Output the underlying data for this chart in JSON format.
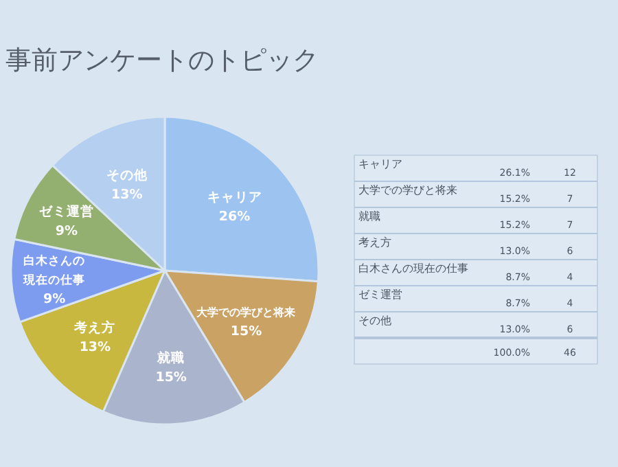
{
  "chart_data": {
    "type": "pie",
    "title": "事前アンケートのトピック",
    "categories": [
      "キャリア",
      "大学での学びと将来",
      "就職",
      "考え方",
      "白木さんの現在の仕事",
      "ゼミ運営",
      "その他"
    ],
    "values": [
      26.1,
      15.2,
      15.2,
      13.0,
      8.7,
      8.7,
      13.0
    ],
    "colors": [
      "#9dc3f0",
      "#c9a264",
      "#aab4cc",
      "#c8b840",
      "#7d9cf0",
      "#94b070",
      "#b4cff0"
    ],
    "value_labels": [
      "26%",
      "15%",
      "15%",
      "13%",
      "9%",
      "9%",
      "13%"
    ],
    "annotations": [
      "26.1%",
      "15.2%",
      "15.2%",
      "13.0%",
      "8.7%",
      "8.7%",
      "13.0%",
      "12",
      "7",
      "7",
      "6",
      "4",
      "4",
      "6",
      "100.0%",
      "46"
    ]
  }
}
